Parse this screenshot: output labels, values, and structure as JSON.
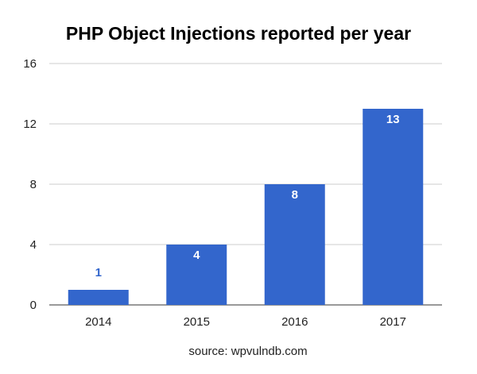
{
  "chart_data": {
    "type": "bar",
    "title": "PHP Object Injections reported per year",
    "categories": [
      "2014",
      "2015",
      "2016",
      "2017"
    ],
    "values": [
      1,
      4,
      8,
      13
    ],
    "data_labels": [
      "1",
      "4",
      "8",
      "13"
    ],
    "ylim": [
      0,
      16
    ],
    "yticks": [
      0,
      4,
      8,
      12,
      16
    ],
    "ytick_labels": [
      "0",
      "4",
      "8",
      "12",
      "16"
    ],
    "grid": true,
    "xlabel": "",
    "ylabel": "",
    "note": "source: wpvulndb.com",
    "colors": {
      "bar": "#3366cc",
      "label_inside": "#ffffff",
      "label_outside": "#3366cc",
      "grid": "#cccccc",
      "axis": "#333333"
    }
  }
}
